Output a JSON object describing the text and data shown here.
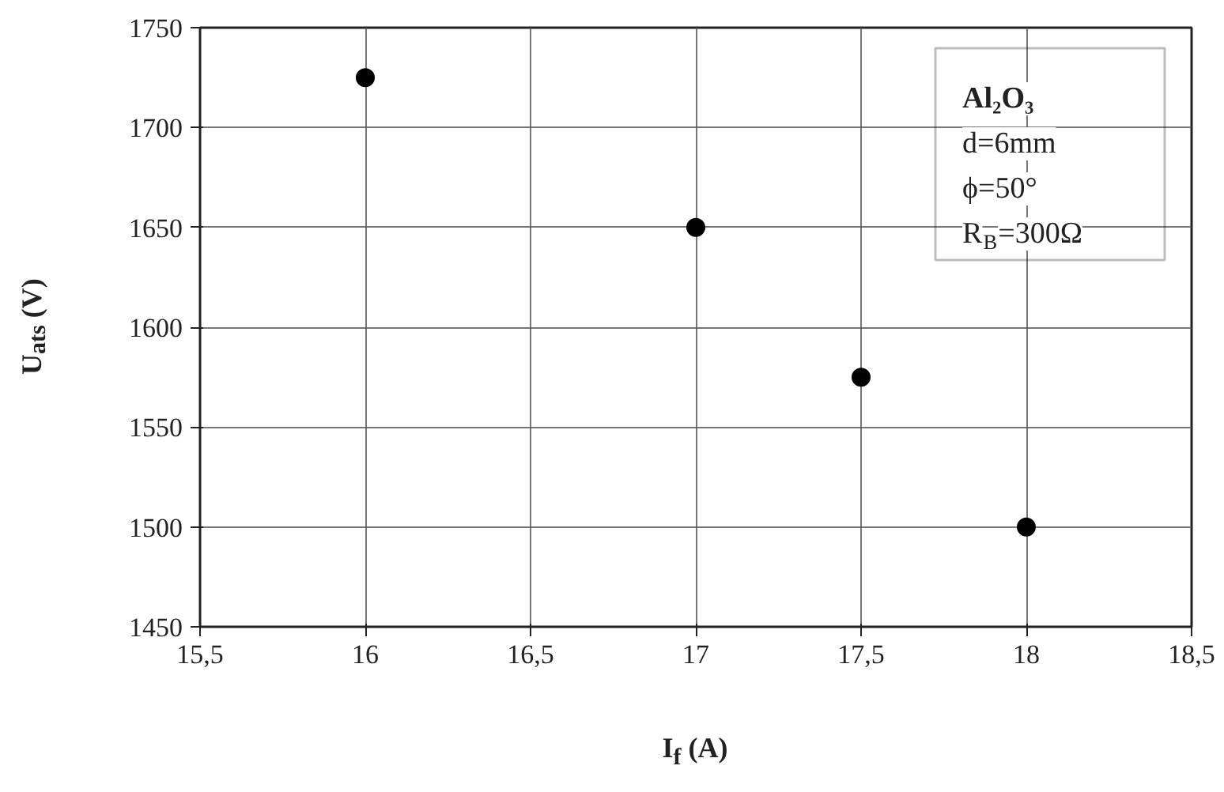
{
  "chart_data": {
    "type": "scatter",
    "xlabel": "I$_{f}$ (A)",
    "ylabel": "U$_{ats}$ (V)",
    "x": [
      16,
      17,
      17.5,
      18
    ],
    "series": [
      {
        "color": "#000000",
        "values": [
          1725,
          1650,
          1575,
          1500
        ]
      }
    ],
    "marker": "circle",
    "xlim": [
      15.5,
      18.5
    ],
    "xticks": [
      {
        "value": 15.5,
        "label": "15,5"
      },
      16,
      {
        "value": 16.5,
        "label": "16,5"
      },
      17,
      {
        "value": 17.5,
        "label": "17,5"
      },
      18,
      {
        "value": 18.5,
        "label": "18,5"
      }
    ],
    "ylim": [
      1450,
      1750
    ],
    "yticks": [
      1450,
      1500,
      1550,
      1600,
      1650,
      1700,
      1750
    ],
    "grid": true,
    "annotations": [
      "Al₂O₃",
      "d=6mm",
      "ϕ=50°",
      "R$_{B}$=300Ω"
    ]
  }
}
